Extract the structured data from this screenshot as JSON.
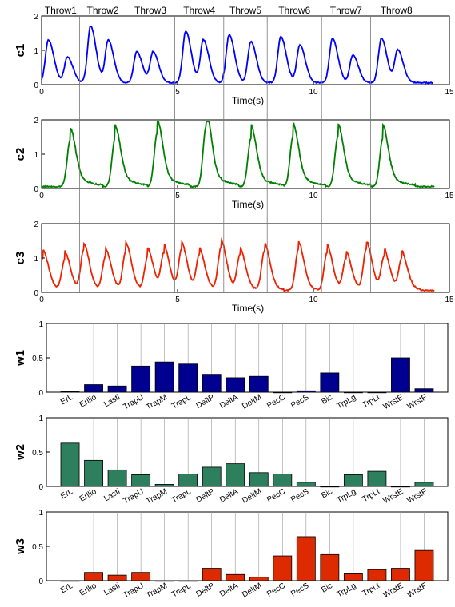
{
  "chart_data": [
    {
      "type": "line",
      "ylabel": "c1",
      "xlabel": "Time(s)",
      "xlim": [
        0,
        15
      ],
      "ylim": [
        0,
        2
      ],
      "xticks": [
        0,
        5,
        10,
        15
      ],
      "yticks": [
        0,
        1,
        2
      ],
      "color": "#0000ff",
      "throw_labels": [
        "Throw1",
        "Throw2",
        "Throw3",
        "Throw4",
        "Throw5",
        "Throw6",
        "Throw7",
        "Throw8"
      ],
      "throw_boundaries": [
        1.4,
        3.1,
        4.9,
        6.7,
        8.3,
        10.3,
        12.1
      ],
      "peaks": [
        [
          0.25,
          1.3
        ],
        [
          0.95,
          0.8
        ],
        [
          1.8,
          1.7
        ],
        [
          2.45,
          1.3
        ],
        [
          3.5,
          0.95
        ],
        [
          4.1,
          0.95
        ],
        [
          5.3,
          1.55
        ],
        [
          5.95,
          1.3
        ],
        [
          6.9,
          1.45
        ],
        [
          7.7,
          1.25
        ],
        [
          8.8,
          1.4
        ],
        [
          9.5,
          1.15
        ],
        [
          10.7,
          1.35
        ],
        [
          11.45,
          0.85
        ],
        [
          12.5,
          1.35
        ],
        [
          13.1,
          1.0
        ]
      ],
      "line_end": 14.4
    },
    {
      "type": "line",
      "ylabel": "c2",
      "xlabel": "Time(s)",
      "xlim": [
        0,
        15
      ],
      "ylim": [
        0,
        2
      ],
      "xticks": [
        0,
        5,
        10,
        15
      ],
      "yticks": [
        0,
        1,
        2
      ],
      "color": "#008000",
      "peaks": [
        [
          1.05,
          1.4
        ],
        [
          2.7,
          1.45
        ],
        [
          4.25,
          1.6
        ],
        [
          6.05,
          1.8
        ],
        [
          7.7,
          1.45
        ],
        [
          9.25,
          1.5
        ],
        [
          10.9,
          1.5
        ],
        [
          12.55,
          1.45
        ]
      ],
      "line_end": 14.45
    },
    {
      "type": "line",
      "ylabel": "c3",
      "xlabel": "Time(s)",
      "xlim": [
        0,
        15
      ],
      "ylim": [
        0,
        2
      ],
      "xticks": [
        0,
        5,
        10,
        15
      ],
      "yticks": [
        0,
        1,
        2
      ],
      "color": "#ee2200",
      "peaks": [
        [
          0.05,
          1.0
        ],
        [
          0.85,
          0.95
        ],
        [
          1.55,
          1.2
        ],
        [
          2.35,
          1.05
        ],
        [
          3.1,
          1.2
        ],
        [
          3.9,
          1.05
        ],
        [
          4.5,
          1.1
        ],
        [
          5.15,
          1.2
        ],
        [
          5.8,
          1.05
        ],
        [
          6.6,
          1.3
        ],
        [
          7.3,
          1.05
        ],
        [
          8.2,
          1.2
        ],
        [
          9.45,
          1.25
        ],
        [
          10.5,
          1.15
        ],
        [
          11.2,
          0.95
        ],
        [
          11.95,
          1.25
        ],
        [
          12.6,
          1.0
        ],
        [
          13.25,
          0.95
        ]
      ],
      "line_end": 14.45
    },
    {
      "type": "bar",
      "ylabel": "w1",
      "ylim": [
        0,
        1
      ],
      "yticks": [
        0,
        0.5,
        1
      ],
      "color": "#000090",
      "categories": [
        "ErL",
        "Erllio",
        "Lasti",
        "TrapU",
        "TrapM",
        "TrapL",
        "DeltP",
        "DeltA",
        "DeltM",
        "PecC",
        "PecS",
        "Bic",
        "TrpLg",
        "TrpLt",
        "WrstE",
        "WrstF"
      ],
      "values": [
        0.01,
        0.11,
        0.09,
        0.38,
        0.44,
        0.41,
        0.26,
        0.21,
        0.23,
        0.0,
        0.02,
        0.28,
        0.0,
        0.0,
        0.5,
        0.05
      ]
    },
    {
      "type": "bar",
      "ylabel": "w2",
      "ylim": [
        0,
        1
      ],
      "yticks": [
        0,
        0.5,
        1
      ],
      "color": "#2d7f5e",
      "categories": [
        "ErL",
        "Erllio",
        "Lasti",
        "TrapU",
        "TrapM",
        "TrapL",
        "DeltP",
        "DeltA",
        "DeltM",
        "PecC",
        "PecS",
        "Bic",
        "TrpLg",
        "TrpLt",
        "WrstE",
        "WrstF"
      ],
      "values": [
        0.63,
        0.38,
        0.24,
        0.17,
        0.03,
        0.18,
        0.28,
        0.33,
        0.2,
        0.18,
        0.06,
        0.0,
        0.17,
        0.22,
        0.0,
        0.06
      ]
    },
    {
      "type": "bar",
      "ylabel": "w3",
      "ylim": [
        0,
        1
      ],
      "yticks": [
        0,
        0.5,
        1
      ],
      "color": "#dd2a00",
      "categories": [
        "ErL",
        "Erllio",
        "Lasti",
        "TrapU",
        "TrapM",
        "TrapL",
        "DeltP",
        "DeltA",
        "DeltM",
        "PecC",
        "PecS",
        "Bic",
        "TrpLg",
        "TrpLt",
        "WrstE",
        "WrstF"
      ],
      "values": [
        0.0,
        0.12,
        0.08,
        0.12,
        0.0,
        0.0,
        0.18,
        0.09,
        0.05,
        0.36,
        0.64,
        0.38,
        0.1,
        0.16,
        0.18,
        0.44
      ]
    }
  ]
}
